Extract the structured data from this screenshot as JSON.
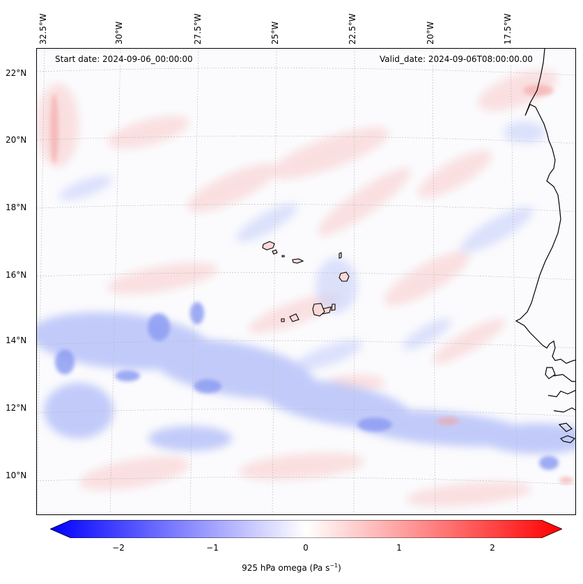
{
  "header": {
    "start_date": "Start date: 2024-09-06_00:00:00",
    "valid_date": "Valid_date: 2024-09-06T08:00:00.00"
  },
  "longitude_labels": [
    "32.5°W",
    "30°W",
    "27.5°W",
    "25°W",
    "22.5°W",
    "20°W",
    "17.5°W"
  ],
  "latitude_labels": [
    "22°N",
    "20°N",
    "18°N",
    "16°N",
    "14°N",
    "12°N",
    "10°N"
  ],
  "colorbar": {
    "ticks": [
      "−2",
      "−1",
      "0",
      "1",
      "2"
    ],
    "label": "925 hPa omega (Pa s",
    "label_exponent": "−1",
    "label_close": ")",
    "min_color": "#0000ff",
    "mid_color": "#ffffff",
    "max_color": "#ff0000",
    "range": [
      -2.6,
      2.6
    ]
  },
  "map": {
    "region": "Cape Verde Islands and West African coast",
    "background_color": "#fbfbfd",
    "coastline_color": "#000000"
  }
}
